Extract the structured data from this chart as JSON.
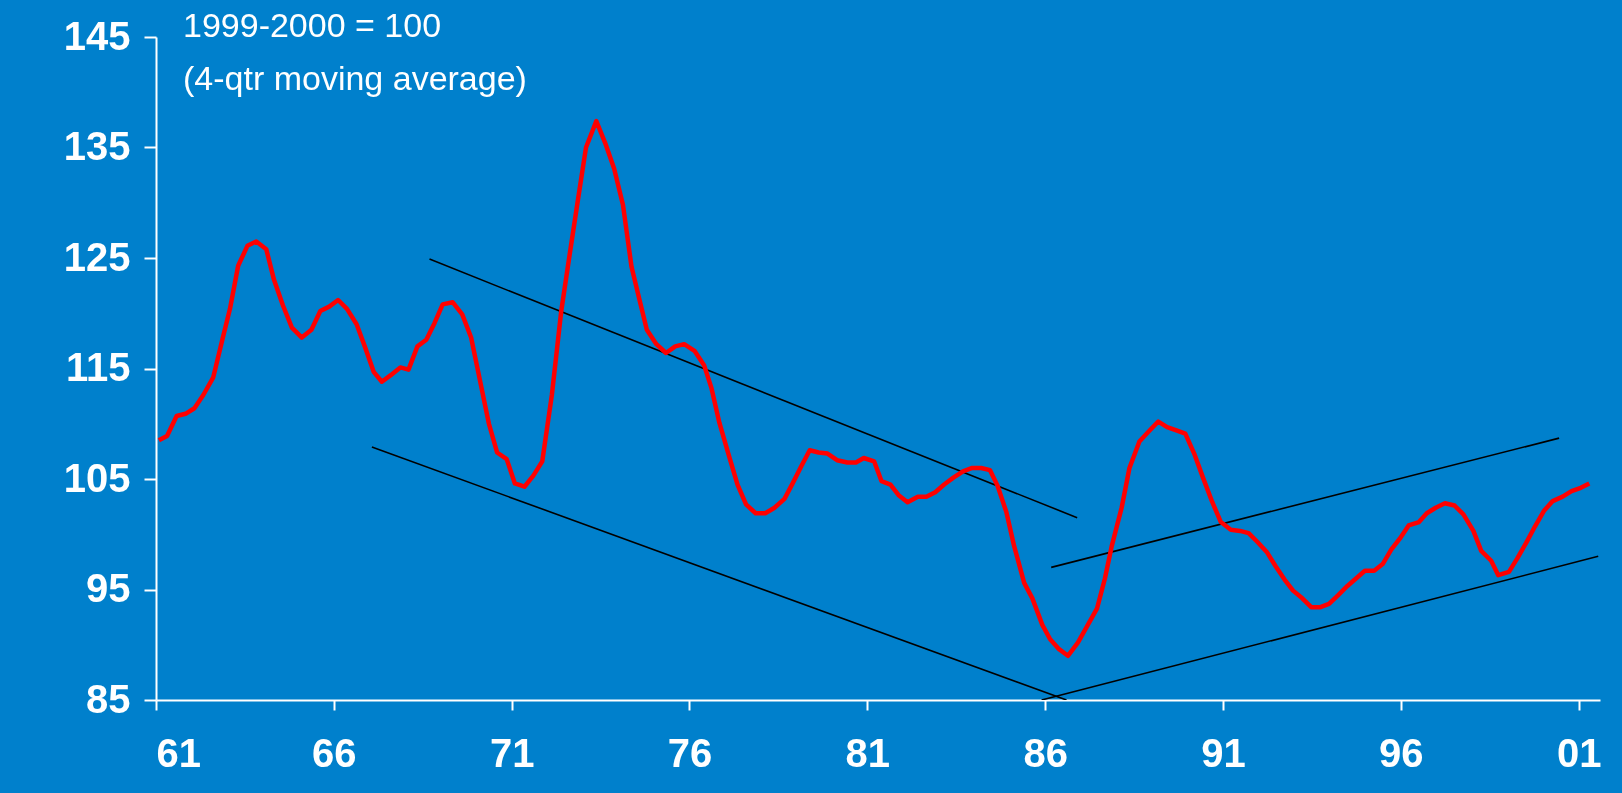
{
  "chart_data": {
    "type": "line",
    "annotations": [
      "1999-2000 = 100",
      "(4-qtr moving average)"
    ],
    "xlim": [
      1961,
      2001.6
    ],
    "xticks": [
      {
        "value": 1961,
        "label": "61"
      },
      {
        "value": 1966,
        "label": "66"
      },
      {
        "value": 1971,
        "label": "71"
      },
      {
        "value": 1976,
        "label": "76"
      },
      {
        "value": 1981,
        "label": "81"
      },
      {
        "value": 1986,
        "label": "86"
      },
      {
        "value": 1991,
        "label": "91"
      },
      {
        "value": 1996,
        "label": "96"
      },
      {
        "value": 2001,
        "label": "01"
      }
    ],
    "ylim": [
      85,
      145
    ],
    "yticks": [
      85,
      95,
      105,
      115,
      125,
      135,
      145
    ],
    "series": [
      {
        "color": "#ff0000",
        "x": [
          1961.08,
          1961.31,
          1961.58,
          1961.83,
          1962.08,
          1962.33,
          1962.61,
          1962.88,
          1963.08,
          1963.31,
          1963.57,
          1963.82,
          1964.1,
          1964.32,
          1964.57,
          1964.82,
          1965.1,
          1965.37,
          1965.62,
          1965.87,
          1966.12,
          1966.37,
          1966.64,
          1966.87,
          1967.12,
          1967.35,
          1967.6,
          1967.87,
          1968.1,
          1968.35,
          1968.6,
          1968.83,
          1969.06,
          1969.34,
          1969.61,
          1969.86,
          1970.11,
          1970.36,
          1970.59,
          1970.86,
          1971.09,
          1971.36,
          1971.61,
          1971.86,
          1972.13,
          1972.39,
          1972.63,
          1972.86,
          1973.09,
          1973.38,
          1973.63,
          1973.88,
          1974.13,
          1974.37,
          1974.58,
          1974.8,
          1975.07,
          1975.34,
          1975.6,
          1975.85,
          1976.14,
          1976.41,
          1976.62,
          1976.84,
          1977.11,
          1977.35,
          1977.59,
          1977.86,
          1978.13,
          1978.39,
          1978.67,
          1978.9,
          1979.15,
          1979.38,
          1979.63,
          1979.88,
          1980.15,
          1980.44,
          1980.68,
          1980.9,
          1981.19,
          1981.4,
          1981.65,
          1981.89,
          1982.13,
          1982.42,
          1982.66,
          1982.91,
          1983.16,
          1983.41,
          1983.69,
          1983.95,
          1984.2,
          1984.45,
          1984.66,
          1984.91,
          1985.13,
          1985.41,
          1985.64,
          1985.92,
          1986.14,
          1986.39,
          1986.64,
          1986.92,
          1987.2,
          1987.46,
          1987.68,
          1987.87,
          1988.15,
          1988.37,
          1988.65,
          1988.91,
          1989.18,
          1989.43,
          1989.69,
          1989.94,
          1990.19,
          1990.44,
          1990.7,
          1990.94,
          1991.22,
          1991.48,
          1991.72,
          1991.97,
          1992.23,
          1992.48,
          1992.73,
          1992.97,
          1993.23,
          1993.48,
          1993.74,
          1993.98,
          1994.24,
          1994.49,
          1994.74,
          1994.99,
          1995.25,
          1995.49,
          1995.73,
          1995.97,
          1996.22,
          1996.51,
          1996.73,
          1996.98,
          1997.24,
          1997.51,
          1997.76,
          1998.04,
          1998.26,
          1998.54,
          1998.74,
          1999.04,
          1999.27,
          1999.52,
          1999.77,
          2000.02,
          2000.27,
          2000.55,
          2000.8,
          2001.06,
          2001.3
        ],
        "values": [
          108.5,
          108.9,
          110.7,
          110.9,
          111.4,
          112.6,
          114.2,
          117.8,
          120.4,
          124.3,
          126.1,
          126.5,
          125.8,
          123.0,
          120.7,
          118.7,
          117.8,
          118.5,
          120.2,
          120.6,
          121.2,
          120.4,
          119.0,
          117.0,
          114.7,
          113.8,
          114.4,
          115.1,
          114.9,
          117.0,
          117.6,
          119.1,
          120.8,
          121.0,
          119.9,
          117.8,
          113.9,
          110.0,
          107.4,
          106.8,
          104.6,
          104.3,
          105.3,
          106.6,
          112.6,
          120.1,
          125.3,
          130.2,
          135.0,
          137.4,
          135.4,
          133.1,
          129.8,
          124.2,
          121.4,
          118.5,
          117.2,
          116.4,
          117.0,
          117.2,
          116.6,
          115.3,
          113.2,
          110.1,
          107.1,
          104.5,
          102.7,
          101.9,
          101.9,
          102.4,
          103.2,
          104.6,
          106.2,
          107.6,
          107.4,
          107.3,
          106.7,
          106.5,
          106.5,
          106.9,
          106.6,
          104.8,
          104.5,
          103.5,
          102.9,
          103.4,
          103.4,
          103.8,
          104.5,
          105.1,
          105.7,
          106.0,
          106.0,
          105.8,
          104.4,
          102.0,
          98.9,
          95.6,
          94.2,
          91.8,
          90.5,
          89.6,
          89.0,
          90.2,
          91.8,
          93.3,
          96.0,
          98.9,
          102.4,
          106.0,
          108.4,
          109.3,
          110.2,
          109.7,
          109.4,
          109.1,
          107.3,
          105.1,
          102.9,
          101.1,
          100.4,
          100.3,
          100.1,
          99.3,
          98.4,
          97.1,
          95.9,
          94.9,
          94.2,
          93.4,
          93.4,
          93.7,
          94.5,
          95.3,
          96.0,
          96.7,
          96.7,
          97.3,
          98.6,
          99.6,
          100.8,
          101.1,
          101.9,
          102.4,
          102.8,
          102.6,
          101.8,
          100.3,
          98.5,
          97.6,
          96.3,
          96.6,
          97.8,
          99.2,
          100.7,
          102.1,
          103.0,
          103.4,
          103.9,
          104.2,
          104.6
        ]
      },
      {
        "color": "#000000",
        "x": [
          1968.69,
          1986.9
        ],
        "values": [
          124.9,
          101.5
        ]
      },
      {
        "color": "#000000",
        "x": [
          1967.07,
          1986.6
        ],
        "values": [
          107.9,
          85.0
        ]
      },
      {
        "color": "#000000",
        "x": [
          1986.17,
          2000.45
        ],
        "values": [
          97.0,
          108.7
        ]
      },
      {
        "color": "#000000",
        "x": [
          1985.9,
          2001.55
        ],
        "values": [
          85.0,
          98.0
        ]
      }
    ]
  }
}
